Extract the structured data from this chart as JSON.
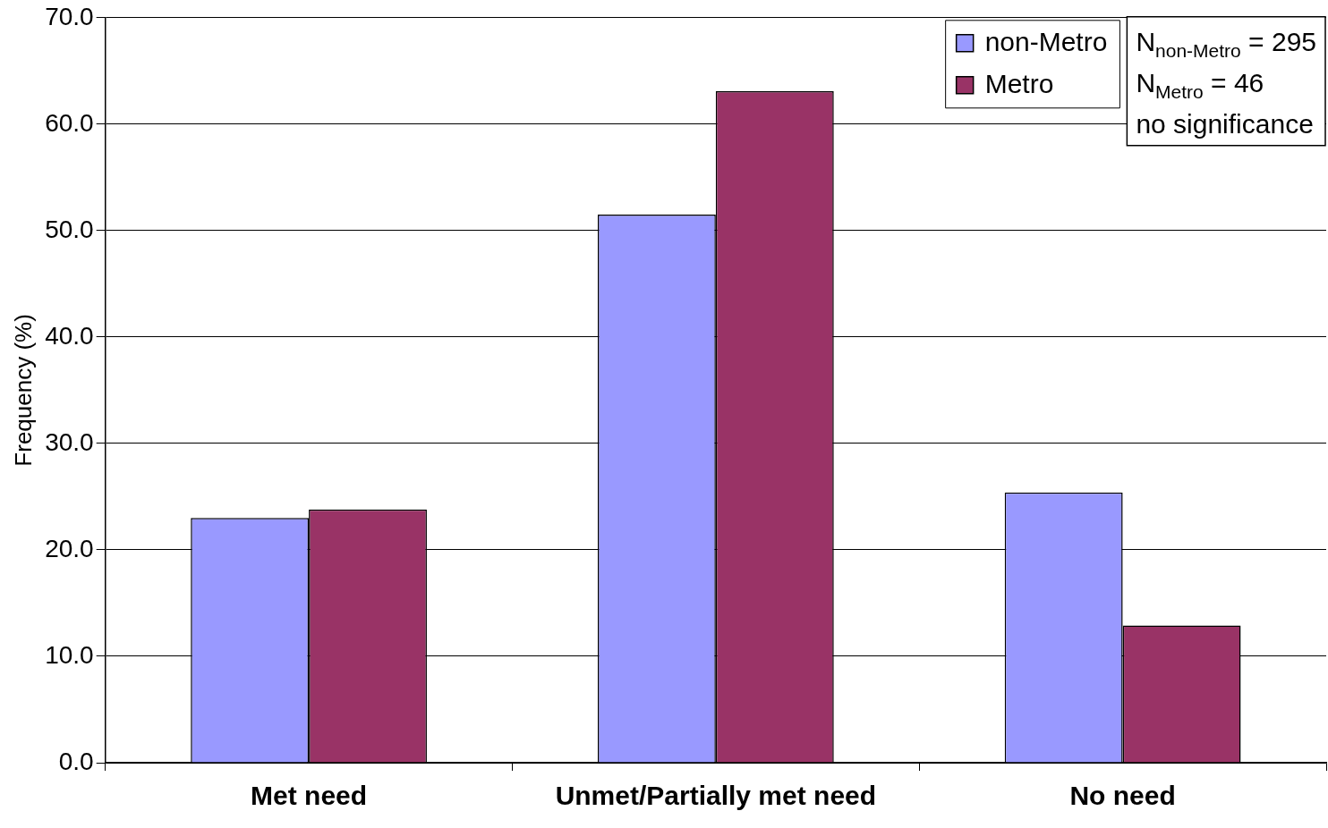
{
  "chart_data": {
    "type": "bar",
    "ylabel": "Frequency (%)",
    "categories": [
      "Met need",
      "Unmet/Partially met need",
      "No need"
    ],
    "series": [
      {
        "name": "non-Metro",
        "color": "#9999ff",
        "values": [
          23.0,
          51.5,
          25.4
        ]
      },
      {
        "name": "Metro",
        "color": "#993366",
        "values": [
          23.8,
          63.1,
          12.9
        ]
      }
    ],
    "ylim": [
      0,
      70
    ],
    "yticks": [
      {
        "value": 0,
        "label": "0.0"
      },
      {
        "value": 10,
        "label": "10.0"
      },
      {
        "value": 20,
        "label": "20.0"
      },
      {
        "value": 30,
        "label": "30.0"
      },
      {
        "value": 40,
        "label": "40.0"
      },
      {
        "value": 50,
        "label": "50.0"
      },
      {
        "value": 60,
        "label": "60.0"
      },
      {
        "value": 70,
        "label": "70.0"
      }
    ],
    "grid": "y",
    "legend": "top right",
    "annotations": [
      "N$_{non-Metro}$ = 295",
      "N$_{Metro}$ = 46",
      "no significance"
    ]
  }
}
